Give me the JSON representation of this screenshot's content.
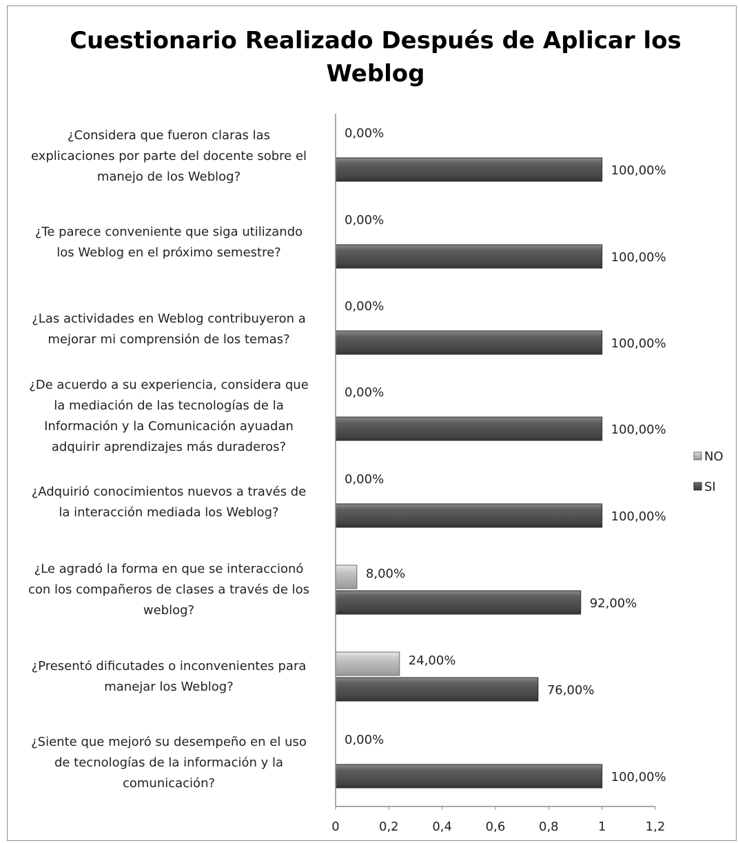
{
  "chart_data": {
    "type": "bar",
    "orientation": "horizontal",
    "title": "Cuestionario Realizado Después de Aplicar los Weblog",
    "title_lines": [
      "Cuestionario Realizado Después de Aplicar los",
      "Weblog"
    ],
    "categories": [
      "¿Considera que fueron claras las explicaciones por parte del docente sobre el manejo de los Weblog?",
      "¿Te parece conveniente que siga utilizando los Weblog en el próximo semestre?",
      "¿Las actividades en Weblog contribuyeron a mejorar mi comprensión de los temas?",
      "¿De acuerdo a su experiencia, considera que la mediación de las tecnologías de la Información y la Comunicación ayuadan adquirir aprendizajes más duraderos?",
      "¿Adquirió conocimientos nuevos a través de la interacción mediada los Weblog?",
      "¿Le agradó la forma en que se interaccionó con los compañeros de clases a través de los weblog?",
      "¿Presentó dificutades o inconvenientes para manejar los Weblog?",
      "¿Siente que mejoró su desempeño en el uso de tecnologías de la información y la comunicación?"
    ],
    "category_lines": [
      [
        "¿Considera que fueron claras las",
        "explicaciones por parte del docente sobre el",
        "manejo de los Weblog?"
      ],
      [
        "¿Te parece conveniente que siga utilizando",
        "los Weblog en el próximo semestre?"
      ],
      [
        "¿Las actividades en Weblog contribuyeron a",
        "mejorar mi comprensión de los temas?"
      ],
      [
        "¿De acuerdo a su experiencia, considera que",
        "la mediación de las tecnologías de la",
        "Información y la Comunicación ayuadan",
        "adquirir aprendizajes más duraderos?"
      ],
      [
        "¿Adquirió conocimientos nuevos a través de",
        "la interacción mediada los Weblog?"
      ],
      [
        "¿Le agradó la forma en que se interaccionó",
        "con los compañeros de clases a través de los",
        "weblog?"
      ],
      [
        "¿Presentó dificutades o inconvenientes para",
        "manejar los Weblog?"
      ],
      [
        "¿Siente que mejoró su desempeño en el uso",
        "de tecnologías de la información y la",
        "comunicación?"
      ]
    ],
    "series": [
      {
        "name": "NO",
        "color": "#b8b8b8",
        "values": [
          0,
          0,
          0,
          0,
          0,
          0.08,
          0.24,
          0
        ],
        "labels": [
          "0,00%",
          "0,00%",
          "0,00%",
          "0,00%",
          "0,00%",
          "8,00%",
          "24,00%",
          "0,00%"
        ]
      },
      {
        "name": "SI",
        "color": "#555555",
        "values": [
          1,
          1,
          1,
          1,
          1,
          0.92,
          0.76,
          1
        ],
        "labels": [
          "100,00%",
          "100,00%",
          "100,00%",
          "100,00%",
          "100,00%",
          "92,00%",
          "76,00%",
          "100,00%"
        ]
      }
    ],
    "xlim": [
      0,
      1.2
    ],
    "xticks": [
      0,
      0.2,
      0.4,
      0.6,
      0.8,
      1,
      1.2
    ],
    "xtick_labels": [
      "0",
      "0,2",
      "0,4",
      "0,6",
      "0,8",
      "1",
      "1,2"
    ],
    "xlabel": "",
    "ylabel": "",
    "grid": false,
    "legend_position": "right"
  }
}
